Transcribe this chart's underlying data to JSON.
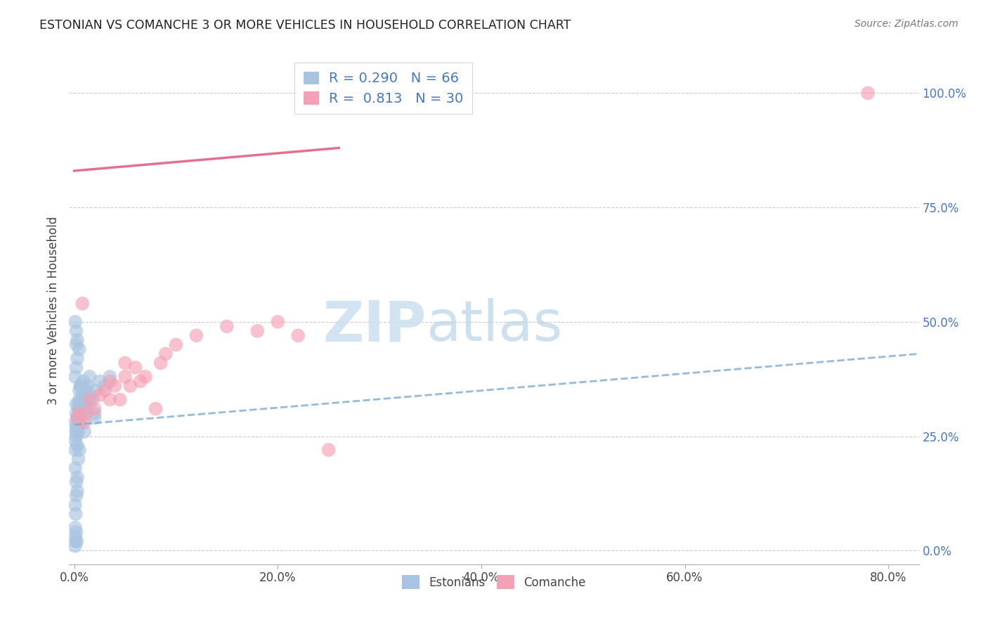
{
  "title": "ESTONIAN VS COMANCHE 3 OR MORE VEHICLES IN HOUSEHOLD CORRELATION CHART",
  "source": "Source: ZipAtlas.com",
  "xlabel_ticks": [
    "0.0%",
    "20.0%",
    "40.0%",
    "60.0%",
    "80.0%"
  ],
  "xlabel_tick_vals": [
    0,
    20,
    40,
    60,
    80
  ],
  "ylabel_ticks": [
    "0.0%",
    "25.0%",
    "50.0%",
    "75.0%",
    "100.0%"
  ],
  "ylabel_tick_vals": [
    0,
    25,
    50,
    75,
    100
  ],
  "ylabel": "3 or more Vehicles in Household",
  "xlim": [
    -0.5,
    83
  ],
  "ylim": [
    -3,
    108
  ],
  "watermark_zip": "ZIP",
  "watermark_atlas": "atlas",
  "estonian_color": "#a8c4e0",
  "comanche_color": "#f4a0b5",
  "estonian_line_color": "#7aaad0",
  "comanche_line_color": "#e06080",
  "estonian_scatter": [
    [
      0.1,
      28
    ],
    [
      0.15,
      26
    ],
    [
      0.1,
      24
    ],
    [
      0.2,
      30
    ],
    [
      0.2,
      32
    ],
    [
      0.3,
      27
    ],
    [
      0.3,
      29
    ],
    [
      0.4,
      31
    ],
    [
      0.4,
      28
    ],
    [
      0.5,
      33
    ],
    [
      0.5,
      35
    ],
    [
      0.6,
      30
    ],
    [
      0.6,
      36
    ],
    [
      0.7,
      32
    ],
    [
      0.8,
      29
    ],
    [
      0.8,
      34
    ],
    [
      0.9,
      37
    ],
    [
      1.0,
      31
    ],
    [
      1.0,
      33
    ],
    [
      1.1,
      35
    ],
    [
      1.2,
      32
    ],
    [
      1.3,
      36
    ],
    [
      1.5,
      34
    ],
    [
      1.5,
      38
    ],
    [
      1.8,
      33
    ],
    [
      2.0,
      35
    ],
    [
      2.0,
      30
    ],
    [
      2.5,
      37
    ],
    [
      3.0,
      36
    ],
    [
      3.5,
      38
    ],
    [
      0.1,
      22
    ],
    [
      0.2,
      25
    ],
    [
      0.3,
      23
    ],
    [
      0.4,
      26
    ],
    [
      0.5,
      28
    ],
    [
      0.1,
      38
    ],
    [
      0.2,
      40
    ],
    [
      0.3,
      42
    ],
    [
      0.5,
      44
    ],
    [
      0.2,
      45
    ],
    [
      0.1,
      18
    ],
    [
      0.2,
      15
    ],
    [
      0.3,
      13
    ],
    [
      0.4,
      20
    ],
    [
      0.5,
      22
    ],
    [
      0.1,
      10
    ],
    [
      0.15,
      8
    ],
    [
      0.2,
      12
    ],
    [
      0.3,
      16
    ],
    [
      0.1,
      5
    ],
    [
      0.1,
      3
    ],
    [
      0.15,
      2
    ],
    [
      0.2,
      4
    ],
    [
      0.1,
      1
    ],
    [
      0.25,
      2
    ],
    [
      0.1,
      50
    ],
    [
      0.2,
      48
    ],
    [
      0.3,
      46
    ],
    [
      0.4,
      32
    ],
    [
      0.5,
      30
    ],
    [
      1.0,
      26
    ],
    [
      2.0,
      29
    ],
    [
      0.8,
      31
    ],
    [
      1.2,
      33
    ],
    [
      0.6,
      36
    ],
    [
      0.2,
      27
    ]
  ],
  "comanche_scatter": [
    [
      0.5,
      30
    ],
    [
      1.0,
      28
    ],
    [
      1.5,
      33
    ],
    [
      2.0,
      31
    ],
    [
      2.5,
      34
    ],
    [
      3.0,
      35
    ],
    [
      3.5,
      37
    ],
    [
      4.0,
      36
    ],
    [
      4.5,
      33
    ],
    [
      5.0,
      38
    ],
    [
      5.5,
      36
    ],
    [
      6.0,
      40
    ],
    [
      6.5,
      37
    ],
    [
      7.0,
      38
    ],
    [
      8.0,
      31
    ],
    [
      8.5,
      41
    ],
    [
      9.0,
      43
    ],
    [
      10.0,
      45
    ],
    [
      12.0,
      47
    ],
    [
      15.0,
      49
    ],
    [
      18.0,
      48
    ],
    [
      20.0,
      50
    ],
    [
      22.0,
      47
    ],
    [
      25.0,
      22
    ],
    [
      0.3,
      29
    ],
    [
      0.8,
      54
    ],
    [
      1.2,
      30
    ],
    [
      3.5,
      33
    ],
    [
      5.0,
      41
    ],
    [
      78.0,
      100
    ]
  ],
  "estonian_reg_line": [
    [
      0,
      83
    ],
    [
      27.5,
      43
    ]
  ],
  "comanche_reg_line": [
    [
      0,
      26
    ],
    [
      83,
      88
    ]
  ]
}
